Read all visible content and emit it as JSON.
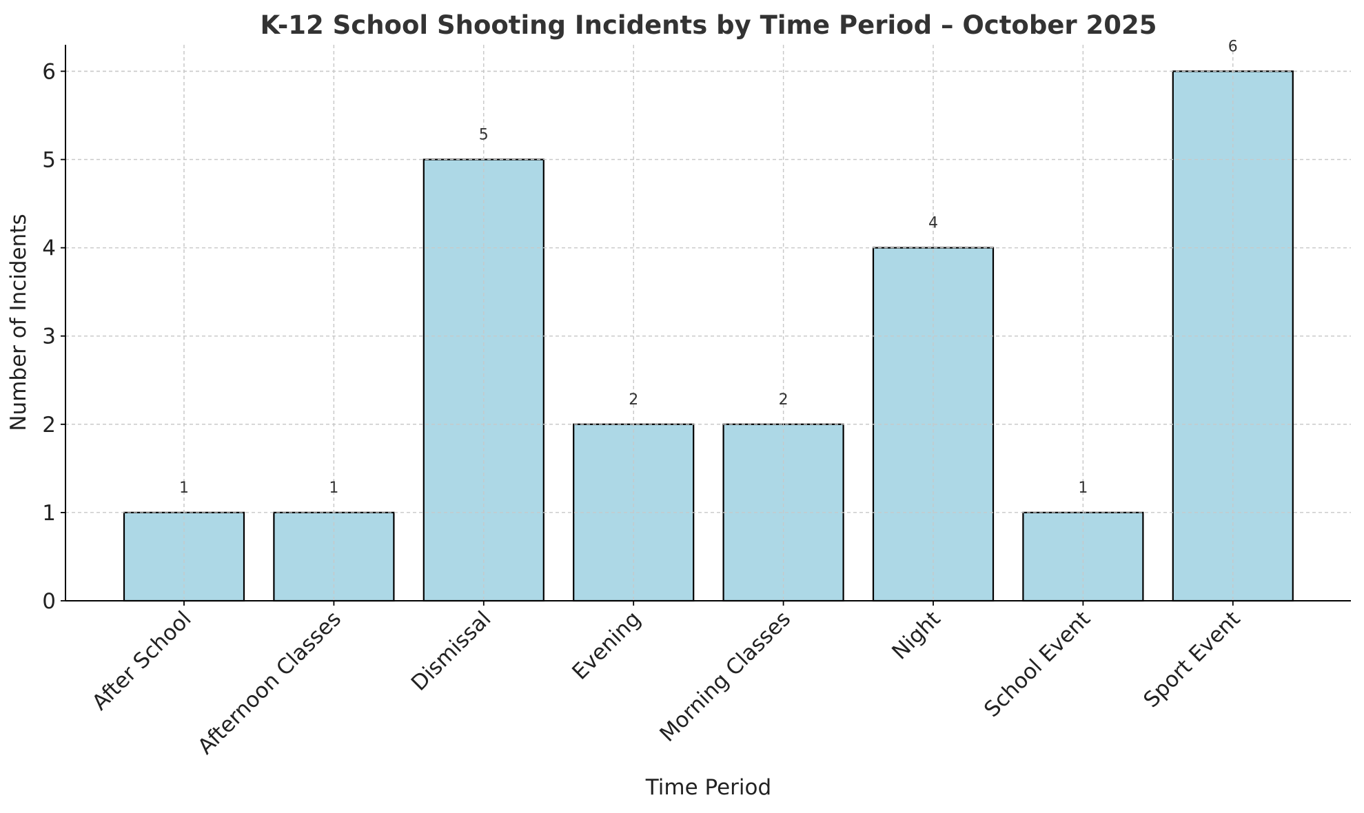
{
  "chart_data": {
    "type": "bar",
    "title": "K-12 School Shooting Incidents by Time Period – October 2025",
    "xlabel": "Time Period",
    "ylabel": "Number of Incidents",
    "categories": [
      "After School",
      "Afternoon Classes",
      "Dismissal",
      "Evening",
      "Morning Classes",
      "Night",
      "School Event",
      "Sport Event"
    ],
    "values": [
      1,
      1,
      5,
      2,
      2,
      4,
      1,
      6
    ],
    "data_labels": [
      "1",
      "1",
      "5",
      "2",
      "2",
      "4",
      "1",
      "6"
    ],
    "yticks": [
      0,
      1,
      2,
      3,
      4,
      5,
      6
    ],
    "ylim": [
      0,
      6.3
    ],
    "grid": true,
    "bar_color": "#add8e6",
    "bar_edge_color": "#000000",
    "grid_color": "#c8c8c8",
    "x_tick_rotation": "45 degrees"
  }
}
